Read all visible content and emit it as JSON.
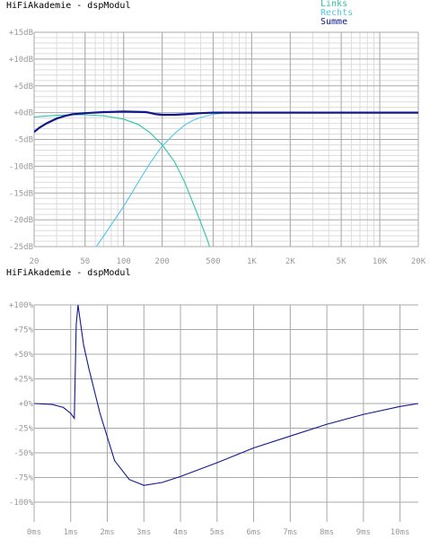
{
  "chart_data": [
    {
      "type": "line",
      "title": "HiFiAkademie - dspModul",
      "x_scale": "log",
      "xlim": [
        20,
        20000
      ],
      "ylim": [
        -25,
        15
      ],
      "grid": true,
      "legend_position": "top-right",
      "y_ticks": [
        15,
        10,
        5,
        0,
        -5,
        -10,
        -15,
        -20,
        -25
      ],
      "y_tick_labels": [
        "+15dB",
        "+10dB",
        "+5dB",
        "+0dB",
        "-5dB",
        "-10dB",
        "-15dB",
        "-20dB",
        "-25dB"
      ],
      "x_tick_values": [
        20,
        50,
        100,
        200,
        500,
        1000,
        2000,
        5000,
        10000,
        20000
      ],
      "x_tick_labels": [
        "20",
        "50",
        "100",
        "200",
        "500",
        "1K",
        "2K",
        "5K",
        "10K",
        "20K"
      ],
      "series": [
        {
          "name": "Links",
          "color": "#2ec4a6",
          "x": [
            20,
            30,
            40,
            50,
            70,
            100,
            130,
            160,
            200,
            250,
            300,
            350,
            400,
            450,
            500
          ],
          "y": [
            -0.8,
            -0.5,
            -0.4,
            -0.4,
            -0.6,
            -1.2,
            -2.2,
            -3.7,
            -6.0,
            -9.2,
            -13.0,
            -17.0,
            -20.5,
            -23.7,
            -27.0
          ]
        },
        {
          "name": "Rechts",
          "color": "#4fc8e8",
          "x": [
            50,
            70,
            100,
            130,
            160,
            200,
            250,
            300,
            350,
            400,
            500,
            600
          ],
          "y": [
            -28.0,
            -23.0,
            -17.5,
            -13.0,
            -9.5,
            -6.2,
            -3.9,
            -2.3,
            -1.4,
            -0.9,
            -0.3,
            -0.1
          ]
        },
        {
          "name": "Summe",
          "color": "#10188c",
          "x": [
            20,
            22,
            25,
            30,
            35,
            40,
            50,
            70,
            100,
            150,
            180,
            200,
            250,
            300,
            400,
            500,
            700,
            1000,
            2000,
            5000,
            10000,
            20000
          ],
          "y": [
            -3.6,
            -2.8,
            -2.0,
            -1.1,
            -0.6,
            -0.3,
            -0.1,
            0.1,
            0.2,
            0.1,
            -0.3,
            -0.4,
            -0.4,
            -0.3,
            -0.1,
            0.0,
            0.0,
            0.0,
            0.0,
            0.0,
            0.0,
            0.0
          ]
        }
      ]
    },
    {
      "type": "line",
      "title": "HiFiAkademie - dspModul",
      "xlim": [
        0,
        10.5
      ],
      "ylim": [
        -100,
        100
      ],
      "grid": true,
      "y_ticks": [
        100,
        75,
        50,
        25,
        0,
        -25,
        -50,
        -75,
        -100
      ],
      "y_tick_labels": [
        "+100%",
        "+75%",
        "+50%",
        "+25%",
        "+0%",
        "-25%",
        "-50%",
        "-75%",
        "-100%"
      ],
      "x_tick_values": [
        0,
        1,
        2,
        3,
        4,
        5,
        6,
        7,
        8,
        9,
        10
      ],
      "x_tick_labels": [
        "0ms",
        "1ms",
        "2ms",
        "3ms",
        "4ms",
        "5ms",
        "6ms",
        "7ms",
        "8ms",
        "9ms",
        "10ms"
      ],
      "series": [
        {
          "color": "#10188c",
          "x": [
            0,
            0.5,
            0.8,
            1.0,
            1.1,
            1.15,
            1.2,
            1.35,
            1.5,
            1.8,
            2.2,
            2.6,
            3.0,
            3.5,
            4.0,
            5.0,
            6.0,
            7.0,
            8.0,
            9.0,
            10.0,
            10.5
          ],
          "y": [
            0,
            -1,
            -4,
            -10,
            -15,
            80,
            100,
            60,
            35,
            -10,
            -58,
            -77,
            -83,
            -80,
            -74,
            -60,
            -45,
            -33,
            -21,
            -11,
            -3,
            0
          ]
        }
      ]
    }
  ]
}
